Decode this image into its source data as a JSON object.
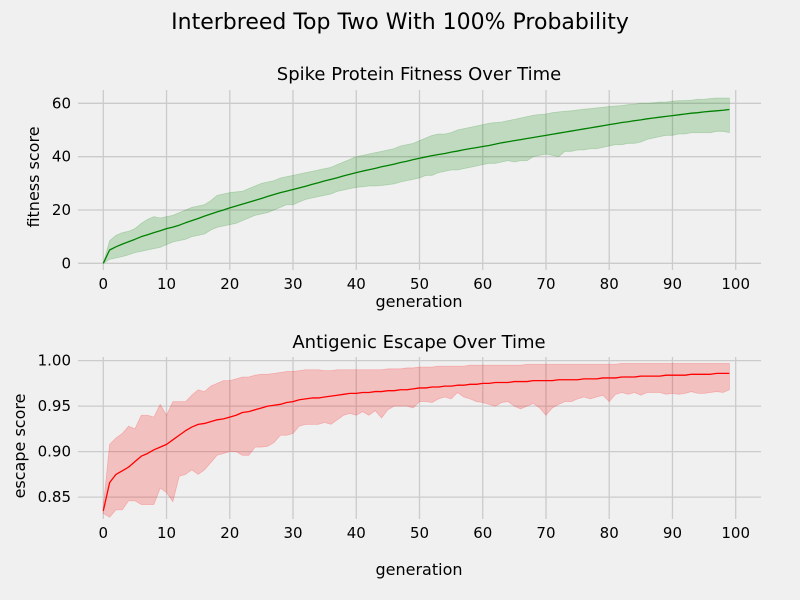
{
  "figure": {
    "suptitle": "Interbreed Top Two With 100% Probability"
  },
  "colors": {
    "background": "#f0f0f0",
    "grid": "#cbcbcb",
    "fitness_line": "#008000",
    "fitness_band": "#008000",
    "escape_line": "#ff0000",
    "escape_band": "#ff0000"
  },
  "chart_data": [
    {
      "type": "line",
      "title": "Spike Protein Fitness Over Time",
      "xlabel": "generation",
      "ylabel": "fitness score",
      "xlim": [
        -4,
        104
      ],
      "ylim": [
        -2.5,
        65
      ],
      "xticks": [
        0,
        10,
        20,
        30,
        40,
        50,
        60,
        70,
        80,
        90,
        100
      ],
      "yticks": [
        0,
        20,
        40,
        60
      ],
      "grid": true,
      "x": [
        0,
        1,
        2,
        3,
        4,
        5,
        6,
        7,
        8,
        9,
        10,
        11,
        12,
        13,
        14,
        15,
        16,
        17,
        18,
        19,
        20,
        21,
        22,
        23,
        24,
        25,
        26,
        27,
        28,
        29,
        30,
        31,
        32,
        33,
        34,
        35,
        36,
        37,
        38,
        39,
        40,
        41,
        42,
        43,
        44,
        45,
        46,
        47,
        48,
        49,
        50,
        51,
        52,
        53,
        54,
        55,
        56,
        57,
        58,
        59,
        60,
        61,
        62,
        63,
        64,
        65,
        66,
        67,
        68,
        69,
        70,
        71,
        72,
        73,
        74,
        75,
        76,
        77,
        78,
        79,
        80,
        81,
        82,
        83,
        84,
        85,
        86,
        87,
        88,
        89,
        90,
        91,
        92,
        93,
        94,
        95,
        96,
        97,
        98,
        99
      ],
      "series": [
        {
          "color": "#008000",
          "mean": [
            0.0,
            5.0,
            6.2,
            7.2,
            8.1,
            9.0,
            10.0,
            10.7,
            11.5,
            12.2,
            13.0,
            13.6,
            14.3,
            15.2,
            16.0,
            16.8,
            17.7,
            18.5,
            19.3,
            20.0,
            20.8,
            21.5,
            22.2,
            22.9,
            23.6,
            24.3,
            25.1,
            25.8,
            26.5,
            27.1,
            27.7,
            28.3,
            28.9,
            29.6,
            30.2,
            30.9,
            31.5,
            32.1,
            32.8,
            33.4,
            34.0,
            34.6,
            35.1,
            35.6,
            36.2,
            36.7,
            37.2,
            37.8,
            38.3,
            38.9,
            39.4,
            39.9,
            40.4,
            40.8,
            41.2,
            41.7,
            42.1,
            42.6,
            43.0,
            43.4,
            43.8,
            44.2,
            44.7,
            45.2,
            45.6,
            46.0,
            46.4,
            46.8,
            47.2,
            47.6,
            48.0,
            48.4,
            48.8,
            49.2,
            49.6,
            50.0,
            50.4,
            50.8,
            51.2,
            51.6,
            52.0,
            52.4,
            52.8,
            53.1,
            53.5,
            53.8,
            54.2,
            54.5,
            54.8,
            55.1,
            55.4,
            55.7,
            56.0,
            56.3,
            56.5,
            56.8,
            57.0,
            57.2,
            57.4,
            57.7
          ],
          "lower": [
            0.0,
            1.5,
            2.0,
            2.5,
            3.2,
            4.0,
            4.5,
            5.0,
            5.5,
            6.0,
            7.0,
            8.0,
            8.5,
            9.0,
            10.0,
            10.5,
            11.0,
            12.5,
            13.5,
            14.0,
            14.5,
            15.0,
            16.0,
            17.0,
            18.0,
            18.5,
            19.0,
            20.0,
            21.0,
            22.0,
            22.0,
            23.0,
            24.0,
            24.5,
            25.0,
            25.5,
            26.0,
            27.0,
            27.5,
            28.0,
            28.5,
            28.7,
            29.0,
            29.0,
            29.2,
            29.5,
            29.8,
            30.5,
            31.0,
            31.5,
            32.0,
            33.0,
            33.0,
            34.0,
            34.5,
            35.0,
            35.0,
            35.5,
            36.0,
            36.5,
            37.0,
            37.5,
            37.5,
            38.0,
            38.5,
            38.0,
            38.5,
            38.5,
            40.0,
            40.5,
            41.0,
            40.5,
            40.0,
            42.0,
            42.0,
            42.5,
            42.5,
            43.0,
            43.0,
            43.5,
            44.0,
            44.5,
            44.5,
            45.0,
            45.0,
            45.5,
            46.5,
            47.0,
            47.5,
            48.0,
            48.0,
            48.5,
            48.5,
            49.0,
            49.0,
            49.0,
            49.0,
            49.5,
            49.5,
            49.0
          ],
          "upper": [
            0.0,
            8.5,
            10.5,
            11.5,
            12.0,
            13.0,
            15.0,
            16.5,
            17.5,
            17.0,
            17.5,
            18.0,
            19.0,
            20.0,
            21.0,
            21.5,
            22.0,
            23.5,
            25.5,
            26.0,
            26.5,
            26.8,
            27.0,
            28.0,
            29.0,
            30.0,
            30.5,
            31.0,
            32.0,
            32.5,
            33.0,
            33.5,
            34.0,
            34.5,
            35.0,
            35.5,
            36.0,
            37.0,
            38.0,
            39.0,
            40.0,
            40.5,
            41.0,
            41.5,
            42.0,
            42.5,
            43.0,
            44.0,
            44.5,
            45.0,
            46.0,
            47.0,
            48.0,
            48.5,
            48.5,
            49.0,
            50.0,
            50.5,
            51.0,
            51.5,
            52.0,
            52.5,
            52.8,
            53.0,
            53.5,
            54.0,
            54.5,
            55.0,
            55.5,
            55.8,
            56.0,
            56.5,
            56.8,
            57.0,
            57.2,
            57.5,
            57.8,
            58.0,
            58.3,
            58.5,
            58.8,
            59.0,
            59.2,
            59.5,
            59.7,
            60.0,
            60.0,
            60.2,
            60.5,
            60.5,
            60.8,
            61.0,
            61.0,
            61.2,
            61.5,
            61.5,
            61.8,
            62.0,
            62.0,
            62.0
          ]
        }
      ]
    },
    {
      "type": "line",
      "title": "Antigenic Escape Over Time",
      "xlabel": "generation",
      "ylabel": "escape score",
      "xlim": [
        -4,
        104
      ],
      "ylim": [
        0.826,
        1.004
      ],
      "xticks": [
        0,
        10,
        20,
        30,
        40,
        50,
        60,
        70,
        80,
        90,
        100
      ],
      "yticks": [
        0.85,
        0.9,
        0.95,
        1.0
      ],
      "ytick_labels": [
        "0.85",
        "0.90",
        "0.95",
        "1.00"
      ],
      "grid": true,
      "x": [
        0,
        1,
        2,
        3,
        4,
        5,
        6,
        7,
        8,
        9,
        10,
        11,
        12,
        13,
        14,
        15,
        16,
        17,
        18,
        19,
        20,
        21,
        22,
        23,
        24,
        25,
        26,
        27,
        28,
        29,
        30,
        31,
        32,
        33,
        34,
        35,
        36,
        37,
        38,
        39,
        40,
        41,
        42,
        43,
        44,
        45,
        46,
        47,
        48,
        49,
        50,
        51,
        52,
        53,
        54,
        55,
        56,
        57,
        58,
        59,
        60,
        61,
        62,
        63,
        64,
        65,
        66,
        67,
        68,
        69,
        70,
        71,
        72,
        73,
        74,
        75,
        76,
        77,
        78,
        79,
        80,
        81,
        82,
        83,
        84,
        85,
        86,
        87,
        88,
        89,
        90,
        91,
        92,
        93,
        94,
        95,
        96,
        97,
        98,
        99
      ],
      "series": [
        {
          "color": "#ff0000",
          "mean": [
            0.835,
            0.866,
            0.875,
            0.879,
            0.883,
            0.889,
            0.895,
            0.898,
            0.902,
            0.905,
            0.908,
            0.913,
            0.918,
            0.923,
            0.927,
            0.93,
            0.931,
            0.933,
            0.935,
            0.936,
            0.938,
            0.94,
            0.943,
            0.944,
            0.946,
            0.948,
            0.95,
            0.951,
            0.952,
            0.954,
            0.955,
            0.957,
            0.958,
            0.959,
            0.959,
            0.96,
            0.961,
            0.962,
            0.963,
            0.964,
            0.964,
            0.965,
            0.965,
            0.966,
            0.966,
            0.967,
            0.967,
            0.968,
            0.968,
            0.969,
            0.97,
            0.97,
            0.971,
            0.971,
            0.972,
            0.972,
            0.973,
            0.973,
            0.974,
            0.974,
            0.975,
            0.975,
            0.976,
            0.976,
            0.976,
            0.977,
            0.977,
            0.977,
            0.978,
            0.978,
            0.978,
            0.978,
            0.979,
            0.979,
            0.979,
            0.979,
            0.98,
            0.98,
            0.98,
            0.981,
            0.981,
            0.981,
            0.982,
            0.982,
            0.982,
            0.983,
            0.983,
            0.983,
            0.983,
            0.984,
            0.984,
            0.984,
            0.984,
            0.985,
            0.985,
            0.985,
            0.985,
            0.986,
            0.986,
            0.986
          ],
          "lower": [
            0.832,
            0.828,
            0.836,
            0.836,
            0.846,
            0.846,
            0.842,
            0.842,
            0.842,
            0.86,
            0.855,
            0.845,
            0.873,
            0.875,
            0.88,
            0.875,
            0.88,
            0.888,
            0.896,
            0.898,
            0.9,
            0.9,
            0.896,
            0.896,
            0.905,
            0.905,
            0.906,
            0.91,
            0.918,
            0.918,
            0.92,
            0.928,
            0.93,
            0.93,
            0.93,
            0.932,
            0.93,
            0.935,
            0.94,
            0.942,
            0.94,
            0.944,
            0.94,
            0.945,
            0.937,
            0.946,
            0.95,
            0.95,
            0.95,
            0.948,
            0.955,
            0.955,
            0.954,
            0.958,
            0.96,
            0.958,
            0.965,
            0.96,
            0.958,
            0.955,
            0.954,
            0.952,
            0.95,
            0.954,
            0.955,
            0.95,
            0.947,
            0.95,
            0.953,
            0.948,
            0.94,
            0.948,
            0.952,
            0.955,
            0.955,
            0.958,
            0.96,
            0.958,
            0.96,
            0.962,
            0.955,
            0.963,
            0.965,
            0.963,
            0.965,
            0.962,
            0.965,
            0.965,
            0.965,
            0.963,
            0.964,
            0.963,
            0.964,
            0.966,
            0.964,
            0.964,
            0.965,
            0.966,
            0.965,
            0.968
          ],
          "upper": [
            0.84,
            0.908,
            0.915,
            0.92,
            0.928,
            0.925,
            0.94,
            0.94,
            0.938,
            0.952,
            0.94,
            0.955,
            0.955,
            0.955,
            0.962,
            0.968,
            0.966,
            0.972,
            0.975,
            0.978,
            0.978,
            0.98,
            0.982,
            0.982,
            0.984,
            0.985,
            0.985,
            0.986,
            0.987,
            0.988,
            0.988,
            0.989,
            0.99,
            0.99,
            0.99,
            0.989,
            0.989,
            0.99,
            0.99,
            0.99,
            0.99,
            0.99,
            0.99,
            0.99,
            0.99,
            0.991,
            0.991,
            0.991,
            0.992,
            0.992,
            0.993,
            0.993,
            0.993,
            0.994,
            0.994,
            0.994,
            0.994,
            0.994,
            0.995,
            0.995,
            0.995,
            0.995,
            0.995,
            0.995,
            0.995,
            0.995,
            0.995,
            0.996,
            0.996,
            0.996,
            0.996,
            0.996,
            0.996,
            0.996,
            0.996,
            0.996,
            0.996,
            0.996,
            0.996,
            0.996,
            0.996,
            0.996,
            0.997,
            0.997,
            0.997,
            0.997,
            0.997,
            0.997,
            0.997,
            0.997,
            0.997,
            0.997,
            0.997,
            0.997,
            0.997,
            0.997,
            0.997,
            0.997,
            0.997,
            0.997
          ]
        }
      ]
    }
  ]
}
